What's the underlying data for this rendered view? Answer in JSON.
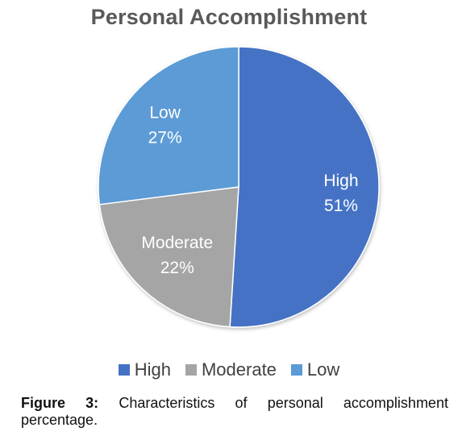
{
  "chart_data": {
    "type": "pie",
    "title": "Personal Accomplishment",
    "categories": [
      "High",
      "Moderate",
      "Low"
    ],
    "values": [
      51,
      22,
      27
    ],
    "value_labels": [
      "51%",
      "22%",
      "27%"
    ],
    "colors": [
      "#4472C4",
      "#A5A5A5",
      "#5B9BD5"
    ],
    "legend_position": "bottom",
    "start_angle": "12 o'clock",
    "direction": "clockwise"
  },
  "caption": {
    "label_words": [
      "Figure",
      "3:"
    ],
    "text_words_line1": [
      "Characteristics",
      "of",
      "personal",
      "accomplishment"
    ],
    "text_line2": "percentage."
  }
}
